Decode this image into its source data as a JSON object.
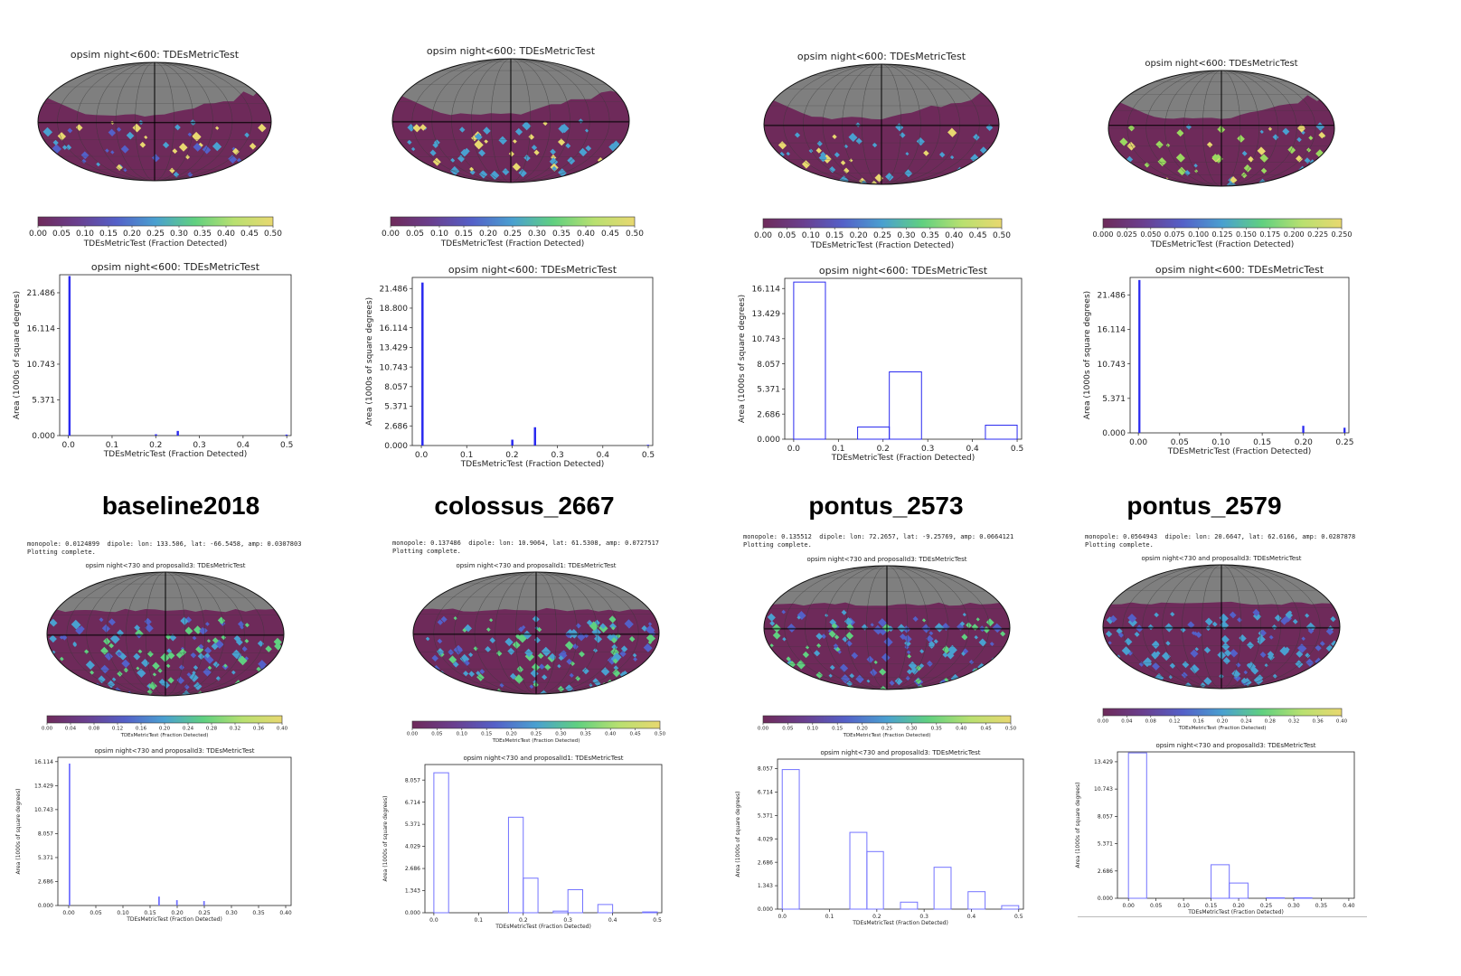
{
  "figure": {
    "colormap": [
      "#6e2a5a",
      "#6a3f8e",
      "#5460c8",
      "#4aa0d0",
      "#60d080",
      "#b8e070",
      "#e8d870"
    ],
    "gray": "#7f7f7f",
    "maroon": "#6e2a5a"
  },
  "simulations": [
    {
      "label": "baseline2018"
    },
    {
      "label": "colossus_2667"
    },
    {
      "label": "pontus_2573"
    },
    {
      "label": "pontus_2579"
    }
  ],
  "top_panels": [
    {
      "map_title": "opsim night<600: TDEsMetricTest",
      "colorbar_ticks": [
        "0.00",
        "0.05",
        "0.10",
        "0.15",
        "0.20",
        "0.25",
        "0.30",
        "0.35",
        "0.40",
        "0.45",
        "0.50"
      ],
      "colorbar_label": "TDEsMetricTest (Fraction Detected)",
      "map_colors": [
        "#6e2a5a",
        "#4aa0d0",
        "#5460c8",
        "#e8d870"
      ]
    },
    {
      "map_title": "opsim night<600: TDEsMetricTest",
      "colorbar_ticks": [
        "0.00",
        "0.05",
        "0.10",
        "0.15",
        "0.20",
        "0.25",
        "0.30",
        "0.35",
        "0.40",
        "0.45",
        "0.50"
      ],
      "colorbar_label": "TDEsMetricTest (Fraction Detected)",
      "map_colors": [
        "#6e2a5a",
        "#4aa0d0",
        "#4aa0d0",
        "#e8d870"
      ]
    },
    {
      "map_title": "opsim night<600: TDEsMetricTest",
      "colorbar_ticks": [
        "0.00",
        "0.05",
        "0.10",
        "0.15",
        "0.20",
        "0.25",
        "0.30",
        "0.35",
        "0.40",
        "0.45",
        "0.50"
      ],
      "colorbar_label": "TDEsMetricTest (Fraction Detected)",
      "map_colors": [
        "#6e2a5a",
        "#4aa0d0",
        "#4aa0d0",
        "#e8d870"
      ]
    },
    {
      "map_title": "opsim night<600: TDEsMetricTest",
      "colorbar_ticks": [
        "0.000",
        "0.025",
        "0.050",
        "0.075",
        "0.100",
        "0.125",
        "0.150",
        "0.175",
        "0.200",
        "0.225",
        "0.250"
      ],
      "colorbar_label": "TDEsMetricTest (Fraction Detected)",
      "map_colors": [
        "#6e2a5a",
        "#9ad860",
        "#e8d870",
        "#4aa0d0"
      ]
    }
  ],
  "bottom_panels": [
    {
      "info_line1": "monopole: 0.0124899  dipole: lon: 133.506, lat: -66.5458, amp: 0.0307803",
      "info_line2": "Plotting complete.",
      "map_title": "opsim night<730 and proposalId3: TDEsMetricTest",
      "colorbar_ticks": [
        "0.00",
        "0.04",
        "0.08",
        "0.12",
        "0.16",
        "0.20",
        "0.24",
        "0.28",
        "0.32",
        "0.36",
        "0.40"
      ],
      "colorbar_label": "TDEsMetricTest (Fraction Detected)",
      "map_colors": [
        "#6e2a5a",
        "#4aa0d0",
        "#60d080",
        "#5460c8"
      ]
    },
    {
      "info_line1": "monopole: 0.137486  dipole: lon: 10.9064, lat: 61.5308, amp: 0.0727517",
      "info_line2": "Plotting complete.",
      "map_title": "opsim night<730 and proposalId1: TDEsMetricTest",
      "colorbar_ticks": [
        "0.00",
        "0.05",
        "0.10",
        "0.15",
        "0.20",
        "0.25",
        "0.30",
        "0.35",
        "0.40",
        "0.45",
        "0.50"
      ],
      "colorbar_label": "TDEsMetricTest (Fraction Detected)",
      "map_colors": [
        "#6e2a5a",
        "#5460c8",
        "#60d080",
        "#4aa0d0"
      ]
    },
    {
      "info_line1": "monopole: 0.135512  dipole: lon: 72.2657, lat: -9.25769, amp: 0.0664121",
      "info_line2": "Plotting complete.",
      "map_title": "opsim night<730 and proposalId3: TDEsMetricTest",
      "colorbar_ticks": [
        "0.00",
        "0.05",
        "0.10",
        "0.15",
        "0.20",
        "0.25",
        "0.30",
        "0.35",
        "0.40",
        "0.45",
        "0.50"
      ],
      "colorbar_label": "TDEsMetricTest (Fraction Detected)",
      "map_colors": [
        "#6e2a5a",
        "#5460c8",
        "#60d080",
        "#4aa0d0"
      ]
    },
    {
      "info_line1": "monopole: 0.0564943  dipole: lon: 20.6647, lat: 62.6166, amp: 0.0287878",
      "info_line2": "Plotting complete.",
      "map_title": "opsim night<730 and proposalId3: TDEsMetricTest",
      "colorbar_ticks": [
        "0.00",
        "0.04",
        "0.08",
        "0.12",
        "0.16",
        "0.20",
        "0.24",
        "0.28",
        "0.32",
        "0.36",
        "0.40"
      ],
      "colorbar_label": "TDEsMetricTest (Fraction Detected)",
      "map_colors": [
        "#6e2a5a",
        "#5460c8",
        "#4aa0d0",
        "#4aa0d0"
      ]
    }
  ],
  "chart_data": [
    {
      "type": "bar",
      "simulation": "baseline2018",
      "title": "opsim night<600: TDEsMetricTest",
      "xlabel": "TDEsMetricTest (Fraction Detected)",
      "ylabel": "Area (1000s of square degrees)",
      "xlim": [
        -0.02,
        0.51
      ],
      "ylim": [
        0,
        24.2
      ],
      "xticks": [
        0.0,
        0.1,
        0.2,
        0.3,
        0.4,
        0.5
      ],
      "xtick_labels": [
        "0.0",
        "0.1",
        "0.2",
        "0.3",
        "0.4",
        "0.5"
      ],
      "yticks": [
        0,
        5.371,
        10.743,
        16.114,
        21.486
      ],
      "ytick_labels": [
        "0.000",
        "5.371",
        "10.743",
        "16.114",
        "21.486"
      ],
      "style": "filled",
      "bars": [
        {
          "x0": 0.0,
          "x1": 0.005,
          "value": 24.0
        },
        {
          "x0": 0.198,
          "x1": 0.203,
          "value": 0.2
        },
        {
          "x0": 0.248,
          "x1": 0.253,
          "value": 0.7
        },
        {
          "x0": 0.497,
          "x1": 0.502,
          "value": 0.15
        }
      ]
    },
    {
      "type": "bar",
      "simulation": "colossus_2667",
      "title": "opsim night<600: TDEsMetricTest",
      "xlabel": "TDEsMetricTest (Fraction Detected)",
      "ylabel": "Area (1000s of square degrees)",
      "xlim": [
        -0.02,
        0.51
      ],
      "ylim": [
        0,
        23.0
      ],
      "xticks": [
        0.0,
        0.1,
        0.2,
        0.3,
        0.4,
        0.5
      ],
      "xtick_labels": [
        "0.0",
        "0.1",
        "0.2",
        "0.3",
        "0.4",
        "0.5"
      ],
      "yticks": [
        0,
        2.686,
        5.371,
        8.057,
        10.743,
        13.429,
        16.114,
        18.8,
        21.486
      ],
      "ytick_labels": [
        "0.000",
        "2.686",
        "5.371",
        "8.057",
        "10.743",
        "13.429",
        "16.114",
        "18.800",
        "21.486"
      ],
      "style": "filled",
      "bars": [
        {
          "x0": 0.0,
          "x1": 0.005,
          "value": 22.3
        },
        {
          "x0": 0.198,
          "x1": 0.203,
          "value": 0.8
        },
        {
          "x0": 0.248,
          "x1": 0.253,
          "value": 2.5
        },
        {
          "x0": 0.497,
          "x1": 0.502,
          "value": 0.1
        }
      ]
    },
    {
      "type": "bar",
      "simulation": "pontus_2573",
      "title": "opsim night<600: TDEsMetricTest",
      "xlabel": "TDEsMetricTest (Fraction Detected)",
      "ylabel": "Area (1000s of square degrees)",
      "xlim": [
        -0.02,
        0.51
      ],
      "ylim": [
        0,
        17.2
      ],
      "xticks": [
        0.0,
        0.1,
        0.2,
        0.3,
        0.4,
        0.5
      ],
      "xtick_labels": [
        "0.0",
        "0.1",
        "0.2",
        "0.3",
        "0.4",
        "0.5"
      ],
      "yticks": [
        0,
        2.686,
        5.371,
        8.057,
        10.743,
        13.429,
        16.114
      ],
      "ytick_labels": [
        "0.000",
        "2.686",
        "5.371",
        "8.057",
        "10.743",
        "13.429",
        "16.114"
      ],
      "style": "outline",
      "bars": [
        {
          "x0": 0.0,
          "x1": 0.071,
          "value": 16.8
        },
        {
          "x0": 0.143,
          "x1": 0.214,
          "value": 1.3
        },
        {
          "x0": 0.214,
          "x1": 0.286,
          "value": 7.2
        },
        {
          "x0": 0.429,
          "x1": 0.5,
          "value": 1.5
        }
      ]
    },
    {
      "type": "bar",
      "simulation": "pontus_2579",
      "title": "opsim night<600: TDEsMetricTest",
      "xlabel": "TDEsMetricTest (Fraction Detected)",
      "ylabel": "Area (1000s of square degrees)",
      "xlim": [
        -0.01,
        0.255
      ],
      "ylim": [
        0,
        24.2
      ],
      "xticks": [
        0.0,
        0.05,
        0.1,
        0.15,
        0.2,
        0.25
      ],
      "xtick_labels": [
        "0.00",
        "0.05",
        "0.10",
        "0.15",
        "0.20",
        "0.25"
      ],
      "yticks": [
        0,
        5.371,
        10.743,
        16.114,
        21.486
      ],
      "ytick_labels": [
        "0.000",
        "5.371",
        "10.743",
        "16.114",
        "21.486"
      ],
      "style": "filled",
      "bars": [
        {
          "x0": 0.0,
          "x1": 0.0025,
          "value": 23.8
        },
        {
          "x0": 0.1985,
          "x1": 0.201,
          "value": 1.1
        },
        {
          "x0": 0.2485,
          "x1": 0.251,
          "value": 0.8
        }
      ]
    },
    {
      "type": "bar",
      "simulation": "baseline2018",
      "title": "opsim night<730 and proposalId3: TDEsMetricTest",
      "xlabel": "TDEsMetricTest (Fraction Detected)",
      "ylabel": "Area (1000s of square degrees)",
      "xlim": [
        -0.02,
        0.41
      ],
      "ylim": [
        0,
        16.6
      ],
      "xticks": [
        0.0,
        0.05,
        0.1,
        0.15,
        0.2,
        0.25,
        0.3,
        0.35,
        0.4
      ],
      "xtick_labels": [
        "0.00",
        "0.05",
        "0.10",
        "0.15",
        "0.20",
        "0.25",
        "0.30",
        "0.35",
        "0.40"
      ],
      "yticks": [
        0,
        2.686,
        5.371,
        8.057,
        10.743,
        13.429,
        16.114
      ],
      "ytick_labels": [
        "0.000",
        "2.686",
        "5.371",
        "8.057",
        "10.743",
        "13.429",
        "16.114"
      ],
      "style": "filled_light",
      "bars": [
        {
          "x0": 0.0,
          "x1": 0.003,
          "value": 15.9
        },
        {
          "x0": 0.165,
          "x1": 0.168,
          "value": 1.0
        },
        {
          "x0": 0.198,
          "x1": 0.201,
          "value": 0.6
        },
        {
          "x0": 0.248,
          "x1": 0.251,
          "value": 0.5
        }
      ]
    },
    {
      "type": "bar",
      "simulation": "colossus_2667",
      "title": "opsim night<730 and proposalId1: TDEsMetricTest",
      "xlabel": "TDEsMetricTest (Fraction Detected)",
      "ylabel": "Area (1000s of square degrees)",
      "xlim": [
        -0.02,
        0.51
      ],
      "ylim": [
        0,
        9.0
      ],
      "xticks": [
        0.0,
        0.1,
        0.2,
        0.3,
        0.4,
        0.5
      ],
      "xtick_labels": [
        "0.0",
        "0.1",
        "0.2",
        "0.3",
        "0.4",
        "0.5"
      ],
      "yticks": [
        0,
        1.343,
        2.686,
        4.029,
        5.371,
        6.714,
        8.057
      ],
      "ytick_labels": [
        "0.000",
        "1.343",
        "2.686",
        "4.029",
        "5.371",
        "6.714",
        "8.057"
      ],
      "style": "outline_light",
      "bars": [
        {
          "x0": 0.0,
          "x1": 0.033,
          "value": 8.5
        },
        {
          "x0": 0.167,
          "x1": 0.2,
          "value": 5.8
        },
        {
          "x0": 0.2,
          "x1": 0.233,
          "value": 2.1
        },
        {
          "x0": 0.267,
          "x1": 0.3,
          "value": 0.1
        },
        {
          "x0": 0.3,
          "x1": 0.333,
          "value": 1.4
        },
        {
          "x0": 0.367,
          "x1": 0.4,
          "value": 0.5
        },
        {
          "x0": 0.467,
          "x1": 0.5,
          "value": 0.05
        }
      ]
    },
    {
      "type": "bar",
      "simulation": "pontus_2573",
      "title": "opsim night<730 and proposalId3: TDEsMetricTest",
      "xlabel": "TDEsMetricTest (Fraction Detected)",
      "ylabel": "Area (1000s of square degrees)",
      "xlim": [
        -0.01,
        0.51
      ],
      "ylim": [
        0,
        8.6
      ],
      "xticks": [
        0.0,
        0.1,
        0.2,
        0.3,
        0.4,
        0.5
      ],
      "xtick_labels": [
        "0.0",
        "0.1",
        "0.2",
        "0.3",
        "0.4",
        "0.5"
      ],
      "yticks": [
        0,
        1.343,
        2.686,
        4.029,
        5.371,
        6.714,
        8.057
      ],
      "ytick_labels": [
        "0.000",
        "1.343",
        "2.686",
        "4.029",
        "5.371",
        "6.714",
        "8.057"
      ],
      "style": "outline_light",
      "bars": [
        {
          "x0": 0.0,
          "x1": 0.036,
          "value": 8.0
        },
        {
          "x0": 0.143,
          "x1": 0.179,
          "value": 4.4
        },
        {
          "x0": 0.179,
          "x1": 0.214,
          "value": 3.3
        },
        {
          "x0": 0.25,
          "x1": 0.286,
          "value": 0.4
        },
        {
          "x0": 0.321,
          "x1": 0.357,
          "value": 2.4
        },
        {
          "x0": 0.393,
          "x1": 0.429,
          "value": 1.0
        },
        {
          "x0": 0.464,
          "x1": 0.5,
          "value": 0.2
        }
      ]
    },
    {
      "type": "bar",
      "simulation": "pontus_2579",
      "title": "opsim night<730 and proposalId3: TDEsMetricTest",
      "xlabel": "TDEsMetricTest (Fraction Detected)",
      "ylabel": "Area (1000s of square degrees)",
      "xlim": [
        -0.02,
        0.41
      ],
      "ylim": [
        0,
        14.4
      ],
      "xticks": [
        0.0,
        0.05,
        0.1,
        0.15,
        0.2,
        0.25,
        0.3,
        0.35,
        0.4
      ],
      "xtick_labels": [
        "0.00",
        "0.05",
        "0.10",
        "0.15",
        "0.20",
        "0.25",
        "0.30",
        "0.35",
        "0.40"
      ],
      "yticks": [
        0,
        2.686,
        5.371,
        8.057,
        10.743,
        13.429
      ],
      "ytick_labels": [
        "0.000",
        "2.686",
        "5.371",
        "8.057",
        "10.743",
        "13.429"
      ],
      "style": "outline_light",
      "bars": [
        {
          "x0": 0.0,
          "x1": 0.033,
          "value": 14.3
        },
        {
          "x0": 0.15,
          "x1": 0.183,
          "value": 3.3
        },
        {
          "x0": 0.183,
          "x1": 0.217,
          "value": 1.5
        },
        {
          "x0": 0.25,
          "x1": 0.283,
          "value": 0.05
        },
        {
          "x0": 0.3,
          "x1": 0.333,
          "value": 0.05
        }
      ]
    }
  ]
}
